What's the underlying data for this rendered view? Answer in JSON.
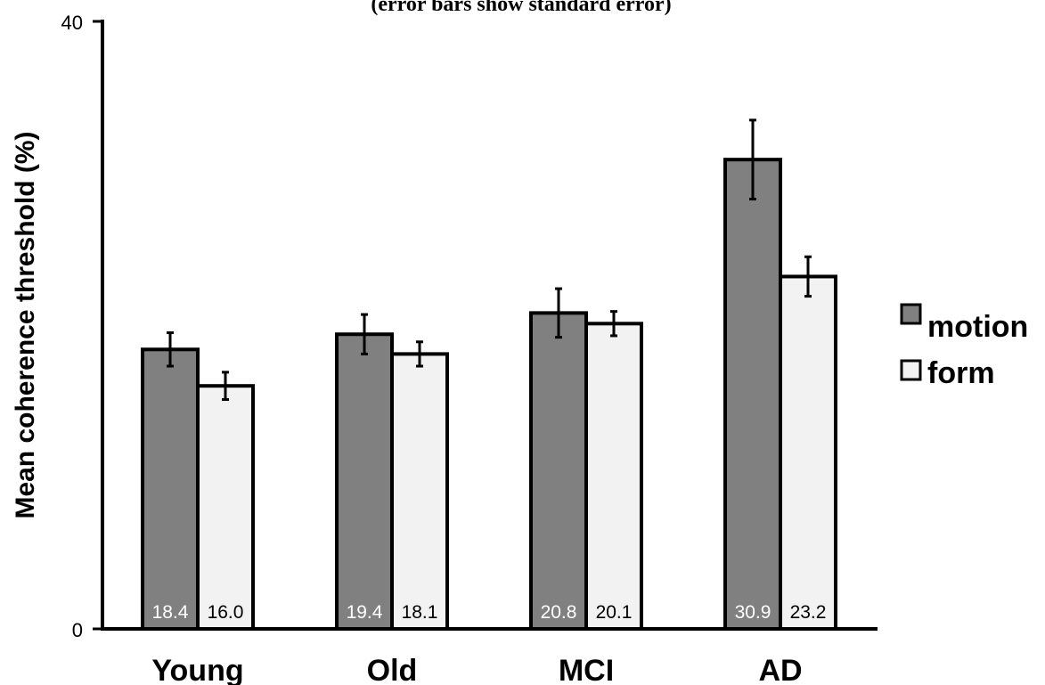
{
  "chart_data": {
    "type": "bar",
    "subtitle": "(error bars show standard error)",
    "ylabel": "Mean coherence threshold (%)",
    "xlabel": "",
    "ylim": [
      0,
      40
    ],
    "yticks": [
      "0",
      "40"
    ],
    "categories": [
      "Young",
      "Old",
      "MCI",
      "AD"
    ],
    "series": [
      {
        "name": "motion",
        "color": "#808080",
        "label_color": "#ffffff",
        "values": [
          18.4,
          19.4,
          20.8,
          30.9
        ],
        "value_labels": [
          "18.4",
          "19.4",
          "20.8",
          "30.9"
        ],
        "errors": [
          1.1,
          1.3,
          1.6,
          2.6
        ]
      },
      {
        "name": "form",
        "color": "#f2f2f2",
        "label_color": "#000000",
        "values": [
          16.0,
          18.1,
          20.1,
          23.2
        ],
        "value_labels": [
          "16.0",
          "18.1",
          "20.1",
          "23.2"
        ],
        "errors": [
          0.9,
          0.8,
          0.8,
          1.3
        ]
      }
    ],
    "legend_position": "right",
    "grid": false
  }
}
